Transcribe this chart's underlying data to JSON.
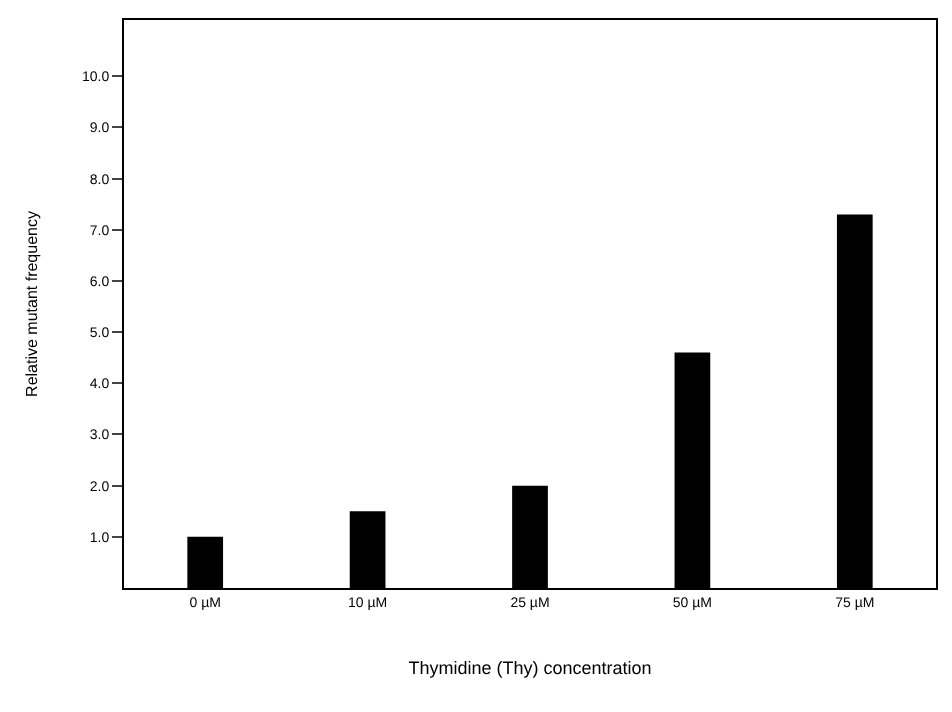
{
  "chart_data": {
    "type": "bar",
    "xlabel": "Thymidine (Thy) concentration",
    "ylabel": "Relative mutant frequency",
    "categories": [
      "0 µM",
      "10 µM",
      "25 µM",
      "50 µM",
      "75 µM"
    ],
    "values": [
      1.0,
      1.5,
      2.0,
      4.6,
      7.3
    ],
    "color": "#000000",
    "ylim": [
      0,
      11.1
    ],
    "yticks": [
      {
        "value": 1,
        "label": "1.0"
      },
      {
        "value": 2,
        "label": "2.0"
      },
      {
        "value": 3,
        "label": "3.0"
      },
      {
        "value": 4,
        "label": "4.0"
      },
      {
        "value": 5,
        "label": "5.0"
      },
      {
        "value": 6,
        "label": "6.0"
      },
      {
        "value": 7,
        "label": "7.0"
      },
      {
        "value": 8,
        "label": "8.0"
      },
      {
        "value": 9,
        "label": "9.0"
      },
      {
        "value": 10,
        "label": "10.0"
      }
    ]
  }
}
